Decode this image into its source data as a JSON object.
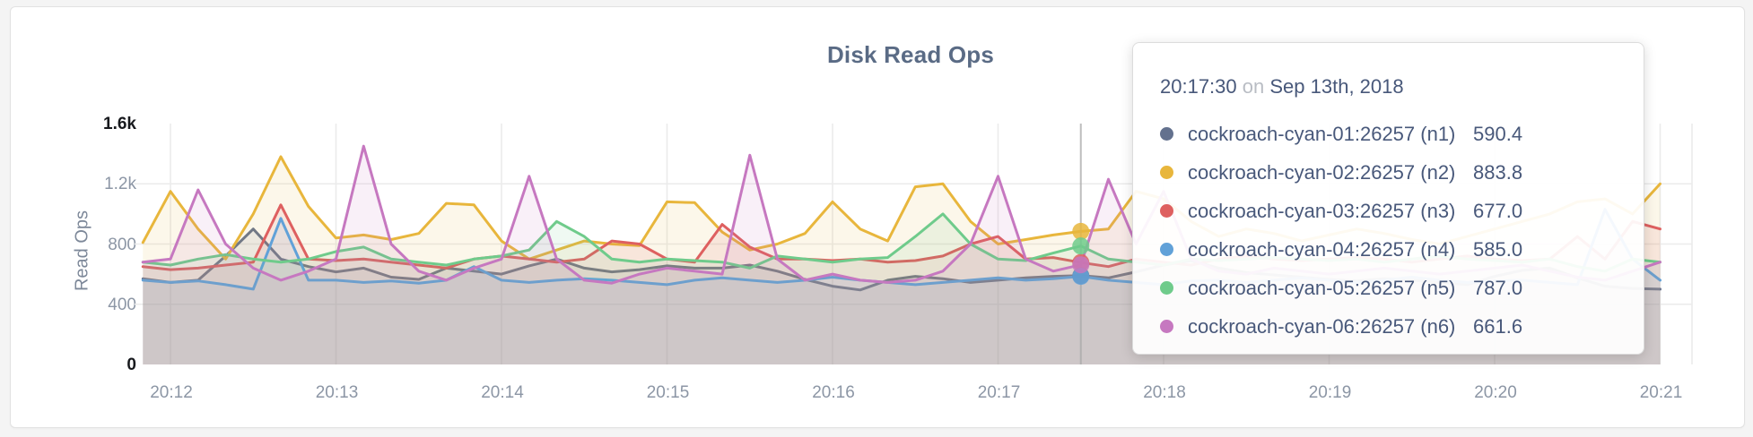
{
  "card": {
    "title": "Disk Read Ops"
  },
  "colors": {
    "page_bg": "#f4f4f4",
    "card_bg": "#ffffff",
    "grid": "#ebebeb",
    "guideline": "#a8a8a8",
    "title_text": "#5a6b85",
    "axis_text": "#8c96a5",
    "axis_text_maxmin": "#17191d",
    "tooltip_text": "#48587a"
  },
  "tooltip": {
    "time": "20:17:30",
    "conj": "on",
    "date": "Sep 13th, 2018",
    "rows": [
      {
        "name": "cockroach-cyan-01:26257 (n1)",
        "value": "590.4",
        "color": "#63718e"
      },
      {
        "name": "cockroach-cyan-02:26257 (n2)",
        "value": "883.8",
        "color": "#e8b63c"
      },
      {
        "name": "cockroach-cyan-03:26257 (n3)",
        "value": "677.0",
        "color": "#de6060"
      },
      {
        "name": "cockroach-cyan-04:26257 (n4)",
        "value": "585.0",
        "color": "#61a1d8"
      },
      {
        "name": "cockroach-cyan-05:26257 (n5)",
        "value": "787.0",
        "color": "#6fcb8b"
      },
      {
        "name": "cockroach-cyan-06:26257 (n6)",
        "value": "661.6",
        "color": "#c678c0"
      }
    ]
  },
  "chart_data": {
    "type": "area",
    "title": "Disk Read Ops",
    "ylabel": "Read Ops",
    "ylim": [
      0,
      1600
    ],
    "grid": true,
    "legend_position": "tooltip-only",
    "yticks": [
      {
        "v": 1600,
        "label": "1.6k",
        "emph": true
      },
      {
        "v": 1200,
        "label": "1.2k",
        "emph": false
      },
      {
        "v": 800,
        "label": "800",
        "emph": false
      },
      {
        "v": 400,
        "label": "400",
        "emph": false
      },
      {
        "v": 0,
        "label": "0",
        "emph": true
      }
    ],
    "xticks": [
      "20:12",
      "20:13",
      "20:14",
      "20:15",
      "20:16",
      "20:17",
      "20:18",
      "20:19",
      "20:20",
      "20:21"
    ],
    "x_start": "20:11:50",
    "x_step_seconds": 10,
    "hover_time": "20:17:30",
    "hover_index": 34,
    "series": [
      {
        "name": "cockroach-cyan-01:26257 (n1)",
        "color": "#63718e",
        "values": [
          570,
          545,
          560,
          720,
          900,
          700,
          650,
          615,
          640,
          580,
          565,
          640,
          620,
          600,
          655,
          700,
          640,
          615,
          630,
          655,
          640,
          640,
          660,
          620,
          565,
          520,
          495,
          560,
          585,
          570,
          545,
          560,
          575,
          585,
          590,
          575,
          615,
          660,
          690,
          640,
          610,
          595,
          580,
          565,
          555,
          570,
          560,
          545,
          530,
          585,
          625,
          640,
          575,
          520,
          505,
          500
        ]
      },
      {
        "name": "cockroach-cyan-02:26257 (n2)",
        "color": "#e8b63c",
        "values": [
          810,
          1150,
          900,
          700,
          1000,
          1380,
          1050,
          840,
          860,
          830,
          870,
          1070,
          1060,
          820,
          700,
          760,
          820,
          800,
          790,
          1080,
          1075,
          880,
          760,
          800,
          870,
          1080,
          900,
          820,
          1180,
          1200,
          950,
          800,
          830,
          860,
          884,
          900,
          1150,
          1100,
          950,
          850,
          900,
          870,
          820,
          860,
          900,
          870,
          830,
          800,
          850,
          900,
          950,
          1000,
          1080,
          1100,
          1000,
          1200
        ]
      },
      {
        "name": "cockroach-cyan-03:26257 (n3)",
        "color": "#de6060",
        "values": [
          650,
          630,
          640,
          660,
          680,
          1060,
          700,
          690,
          700,
          680,
          660,
          640,
          700,
          720,
          700,
          680,
          700,
          820,
          800,
          700,
          680,
          930,
          780,
          700,
          700,
          690,
          700,
          680,
          690,
          720,
          800,
          850,
          700,
          710,
          677,
          650,
          700,
          680,
          660,
          700,
          720,
          700,
          690,
          700,
          710,
          700,
          680,
          700,
          720,
          700,
          690,
          700,
          850,
          700,
          950,
          900
        ]
      },
      {
        "name": "cockroach-cyan-04:26257 (n4)",
        "color": "#61a1d8",
        "values": [
          560,
          545,
          555,
          530,
          500,
          970,
          560,
          560,
          545,
          555,
          540,
          560,
          650,
          560,
          545,
          560,
          570,
          560,
          545,
          530,
          560,
          575,
          560,
          545,
          560,
          580,
          560,
          545,
          530,
          545,
          560,
          575,
          560,
          570,
          585,
          560,
          545,
          530,
          555,
          560,
          545,
          560,
          575,
          560,
          545,
          560,
          580,
          560,
          545,
          555,
          560,
          545,
          530,
          1030,
          700,
          560
        ]
      },
      {
        "name": "cockroach-cyan-05:26257 (n5)",
        "color": "#6fcb8b",
        "values": [
          680,
          660,
          700,
          730,
          700,
          680,
          700,
          750,
          780,
          700,
          680,
          660,
          700,
          720,
          760,
          950,
          850,
          700,
          680,
          700,
          690,
          680,
          640,
          720,
          700,
          680,
          700,
          710,
          850,
          1000,
          800,
          700,
          690,
          740,
          787,
          700,
          680,
          660,
          700,
          690,
          700,
          710,
          700,
          690,
          700,
          680,
          700,
          720,
          700,
          690,
          680,
          700,
          650,
          620,
          700,
          680
        ]
      },
      {
        "name": "cockroach-cyan-06:26257 (n6)",
        "color": "#c678c0",
        "values": [
          680,
          700,
          1160,
          800,
          640,
          560,
          620,
          700,
          1450,
          800,
          620,
          560,
          640,
          700,
          1250,
          700,
          560,
          540,
          600,
          640,
          620,
          600,
          1390,
          700,
          560,
          600,
          560,
          545,
          560,
          620,
          800,
          1250,
          700,
          620,
          662,
          1230,
          800,
          1150,
          700,
          620,
          600,
          640,
          620,
          600,
          620,
          640,
          620,
          600,
          620,
          640,
          660,
          620,
          580,
          560,
          620,
          680
        ]
      }
    ]
  }
}
